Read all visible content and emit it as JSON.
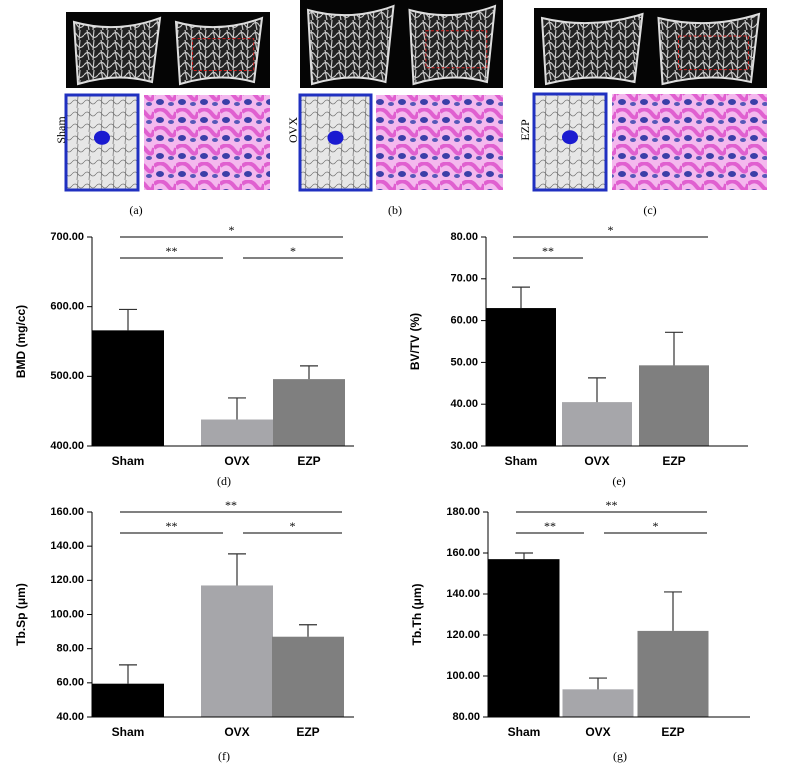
{
  "panels": [
    {
      "label": "Sham",
      "caption": "(a)"
    },
    {
      "label": "OVX",
      "caption": "(b)"
    },
    {
      "label": "EZP",
      "caption": "(c)"
    }
  ],
  "chart_data": [
    {
      "type": "bar",
      "caption": "(d)",
      "y_label": "BMD (mg/cc)",
      "categories": [
        "Sham",
        "OVX",
        "EZP"
      ],
      "values": [
        566,
        438,
        496
      ],
      "errors": [
        30,
        31,
        19
      ],
      "colors": [
        "#000000",
        "#a6a6aa",
        "#7f7f7f"
      ],
      "ylim": [
        400,
        700
      ],
      "yticks": [
        {
          "value": 400,
          "label": "400.00"
        },
        {
          "value": 500,
          "label": "500.00"
        },
        {
          "value": 600,
          "label": "600.00"
        },
        {
          "value": 700,
          "label": "700.00"
        }
      ],
      "annotations": [
        {
          "label": "*",
          "between": [
            "Sham",
            "EZP"
          ]
        },
        {
          "label": "**",
          "between": [
            "Sham",
            "OVX"
          ]
        },
        {
          "label": "*",
          "between": [
            "OVX",
            "EZP"
          ]
        }
      ]
    },
    {
      "type": "bar",
      "caption": "(e)",
      "y_label": "BV/TV (%)",
      "categories": [
        "Sham",
        "OVX",
        "EZP"
      ],
      "values": [
        63,
        40.5,
        49.3
      ],
      "errors": [
        5,
        5.8,
        7.9
      ],
      "colors": [
        "#000000",
        "#a6a6aa",
        "#7f7f7f"
      ],
      "ylim": [
        30,
        80
      ],
      "yticks": [
        {
          "value": 30,
          "label": "30.00"
        },
        {
          "value": 40,
          "label": "40.00"
        },
        {
          "value": 50,
          "label": "50.00"
        },
        {
          "value": 60,
          "label": "60.00"
        },
        {
          "value": 70,
          "label": "70.00"
        },
        {
          "value": 80,
          "label": "80.00"
        }
      ],
      "annotations": [
        {
          "label": "*",
          "between": [
            "Sham",
            "EZP"
          ]
        },
        {
          "label": "**",
          "between": [
            "Sham",
            "OVX"
          ]
        }
      ]
    },
    {
      "type": "bar",
      "caption": "(f)",
      "y_label": "Tb.Sp (μm)",
      "categories": [
        "Sham",
        "OVX",
        "EZP"
      ],
      "values": [
        59.5,
        117,
        87
      ],
      "errors": [
        11,
        18.5,
        7
      ],
      "colors": [
        "#000000",
        "#a6a6aa",
        "#7f7f7f"
      ],
      "ylim": [
        40,
        160
      ],
      "yticks": [
        {
          "value": 40,
          "label": "40.00"
        },
        {
          "value": 60,
          "label": "60.00"
        },
        {
          "value": 80,
          "label": "80.00"
        },
        {
          "value": 100,
          "label": "100.00"
        },
        {
          "value": 120,
          "label": "120.00"
        },
        {
          "value": 140,
          "label": "140.00"
        },
        {
          "value": 160,
          "label": "160.00"
        }
      ],
      "annotations": [
        {
          "label": "**",
          "between": [
            "Sham",
            "EZP"
          ]
        },
        {
          "label": "**",
          "between": [
            "Sham",
            "OVX"
          ]
        },
        {
          "label": "*",
          "between": [
            "OVX",
            "EZP"
          ]
        }
      ]
    },
    {
      "type": "bar",
      "caption": "(g)",
      "y_label": "Tb.Th (μm)",
      "categories": [
        "Sham",
        "OVX",
        "EZP"
      ],
      "values": [
        157,
        93.5,
        122
      ],
      "errors": [
        3,
        5.5,
        19
      ],
      "colors": [
        "#000000",
        "#a6a6aa",
        "#7f7f7f"
      ],
      "ylim": [
        80,
        180
      ],
      "yticks": [
        {
          "value": 80,
          "label": "80.00"
        },
        {
          "value": 100,
          "label": "100.00"
        },
        {
          "value": 120,
          "label": "120.00"
        },
        {
          "value": 140,
          "label": "140.00"
        },
        {
          "value": 160,
          "label": "160.00"
        },
        {
          "value": 180,
          "label": "180.00"
        }
      ],
      "annotations": [
        {
          "label": "**",
          "between": [
            "Sham",
            "EZP"
          ]
        },
        {
          "label": "**",
          "between": [
            "Sham",
            "OVX"
          ]
        },
        {
          "label": "*",
          "between": [
            "OVX",
            "EZP"
          ]
        }
      ]
    }
  ]
}
